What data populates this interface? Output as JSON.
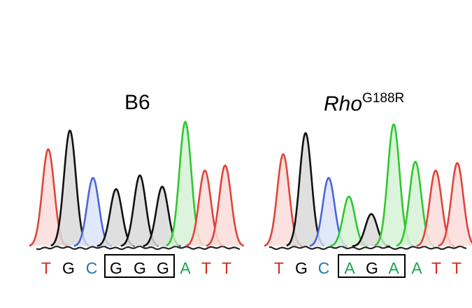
{
  "chart_data": [
    {
      "type": "area",
      "title": "B6",
      "bases": [
        "T",
        "G",
        "C",
        "G",
        "G",
        "G",
        "A",
        "T",
        "T"
      ],
      "peaks": [
        0.78,
        0.93,
        0.55,
        0.46,
        0.57,
        0.48,
        1.0,
        0.61,
        0.65
      ],
      "boxed": [
        3,
        5
      ]
    },
    {
      "type": "area",
      "title_gene": "Rho",
      "title_sup": "G188R",
      "bases": [
        "T",
        "G",
        "C",
        "A",
        "G",
        "A",
        "A",
        "T",
        "T"
      ],
      "peaks": [
        0.74,
        0.91,
        0.55,
        0.4,
        0.26,
        0.98,
        0.68,
        0.61,
        0.67
      ],
      "boxed": [
        3,
        5
      ]
    }
  ],
  "colors": {
    "A": "#1aa64a",
    "C": "#1f77b4",
    "G": "#000000",
    "T": "#d62d20",
    "A_line": "#2ec82e",
    "C_line": "#4a66d8",
    "G_line": "#111111",
    "T_line": "#e0443a",
    "A_fill": "#d5f2d5",
    "C_fill": "#dde4fb",
    "G_fill": "#d9d9d9",
    "T_fill": "#fadcd9"
  }
}
